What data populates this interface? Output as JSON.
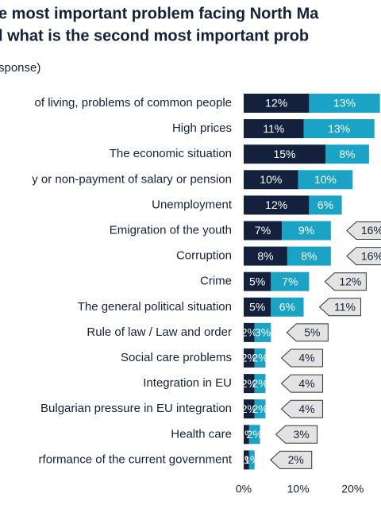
{
  "chart_data": {
    "type": "stacked-bar-horizontal",
    "title": [
      "e most important problem facing North Ma",
      "l what is the second most important prob"
    ],
    "subtitle": "sponse)",
    "categories": [
      "of living, problems of common people",
      "High prices",
      "The economic situation",
      "y or non-payment of salary or pension",
      "Unemployment",
      "Emigration of the youth",
      "Corruption",
      "Crime",
      "The general political situation",
      "Rule of law / Law and order",
      "Social care problems",
      "Integration in EU",
      "Bulgarian pressure in EU integration",
      "Health care",
      "rformance of the current government"
    ],
    "series": [
      {
        "color": "#14213d",
        "values": [
          12,
          11,
          15,
          10,
          12,
          7,
          8,
          5,
          5,
          2,
          2,
          2,
          2,
          1,
          1
        ],
        "value_labels": [
          "12%",
          "11%",
          "15%",
          "10%",
          "12%",
          "7%",
          "8%",
          "5%",
          "5%",
          "2%",
          "2%",
          "2%",
          "2%",
          "1%",
          "1%"
        ]
      },
      {
        "color": "#1aa3c4",
        "values": [
          13,
          13,
          8,
          10,
          6,
          9,
          8,
          7,
          6,
          3,
          2,
          2,
          2,
          2,
          1
        ],
        "value_labels": [
          "13%",
          "13%",
          "8%",
          "10%",
          "6%",
          "9%",
          "8%",
          "7%",
          "6%",
          "3%",
          "2%",
          "2%",
          "2%",
          "2%",
          "1%"
        ]
      }
    ],
    "totals": {
      "values": [
        null,
        null,
        null,
        null,
        null,
        16,
        16,
        12,
        11,
        5,
        4,
        4,
        4,
        3,
        2
      ],
      "value_labels": [
        null,
        null,
        null,
        null,
        null,
        "16%",
        "16%",
        "12%",
        "11%",
        "5%",
        "4%",
        "4%",
        "4%",
        "3%",
        "2%"
      ],
      "color": "#e3e3e3"
    },
    "xlim": [
      0,
      25.2
    ],
    "xticks": [
      {
        "value": 0,
        "label": "0%"
      },
      {
        "value": 10,
        "label": "10%"
      },
      {
        "value": 20,
        "label": "20%"
      }
    ]
  }
}
